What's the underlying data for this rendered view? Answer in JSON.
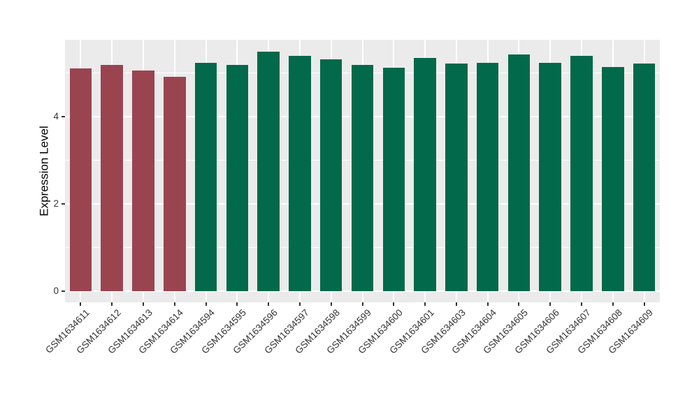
{
  "chart_data": {
    "type": "bar",
    "title": "",
    "xlabel": "",
    "ylabel": "Expression Level",
    "yticks_major": [
      0,
      2,
      4
    ],
    "yticks_minor": [
      1,
      3,
      5
    ],
    "ylim": [
      0,
      5.76
    ],
    "grid": "on",
    "legend": "none",
    "categories": [
      "GSM1634611",
      "GSM1634612",
      "GSM1634613",
      "GSM1634614",
      "GSM1634594",
      "GSM1634595",
      "GSM1634596",
      "GSM1634597",
      "GSM1634598",
      "GSM1634599",
      "GSM1634600",
      "GSM1634601",
      "GSM1634603",
      "GSM1634604",
      "GSM1634605",
      "GSM1634606",
      "GSM1634607",
      "GSM1634608",
      "GSM1634609"
    ],
    "values": [
      5.11,
      5.19,
      5.06,
      4.91,
      5.24,
      5.19,
      5.49,
      5.39,
      5.32,
      5.19,
      5.12,
      5.34,
      5.22,
      5.23,
      5.42,
      5.23,
      5.39,
      5.14,
      5.22
    ],
    "bar_colors": [
      "#9A4450",
      "#9A4450",
      "#9A4450",
      "#9A4450",
      "#02694A",
      "#02694A",
      "#02694A",
      "#02694A",
      "#02694A",
      "#02694A",
      "#02694A",
      "#02694A",
      "#02694A",
      "#02694A",
      "#02694A",
      "#02694A",
      "#02694A",
      "#02694A",
      "#02694A"
    ],
    "colors": {
      "highlight_group": "#9A4450",
      "normal_group": "#02694A",
      "panel_background": "#EBEBEB",
      "gridline": "#FFFFFF",
      "tick_text": "#333333",
      "axis_title_text": "#000000",
      "figure_background": "#FFFFFF"
    }
  }
}
